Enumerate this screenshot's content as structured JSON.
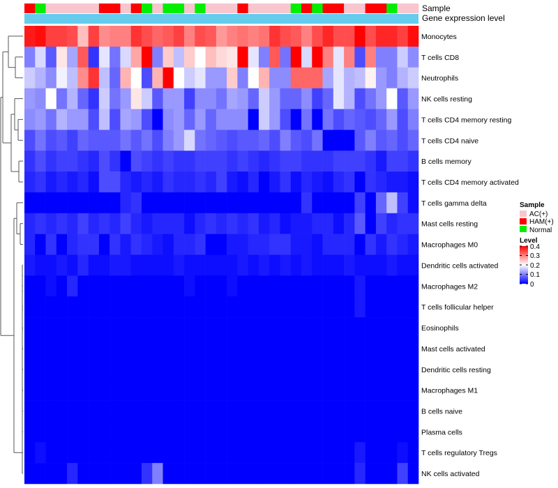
{
  "chart_data": {
    "type": "heatmap",
    "title": "",
    "annotation_tracks": [
      "Sample",
      "Gene expression level"
    ],
    "sample_annotation": [
      "HAM(+)",
      "Normal",
      "AC(+)",
      "AC(+)",
      "AC(+)",
      "AC(+)",
      "AC(+)",
      "HAM(+)",
      "HAM(+)",
      "AC(+)",
      "HAM(+)",
      "Normal",
      "AC(+)",
      "Normal",
      "Normal",
      "AC(+)",
      "Normal",
      "AC(+)",
      "AC(+)",
      "AC(+)",
      "HAM(+)",
      "AC(+)",
      "AC(+)",
      "AC(+)",
      "AC(+)",
      "Normal",
      "HAM(+)",
      "Normal",
      "HAM(+)",
      "HAM(+)",
      "AC(+)",
      "AC(+)",
      "HAM(+)",
      "HAM(+)",
      "Normal",
      "AC(+)",
      "AC(+)"
    ],
    "rows": [
      "Monocytes",
      "T cells CD8",
      "Neutrophils",
      "NK cells resting",
      "T cells CD4 memory resting",
      "T cells CD4 naive",
      "B cells memory",
      "T cells CD4 memory activated",
      "T cells gamma delta",
      "Mast cells resting",
      "Macrophages M0",
      "Dendritic cells activated",
      "Macrophages M2",
      "T cells follicular helper",
      "Eosinophils",
      "Mast cells activated",
      "Dendritic cells resting",
      "Macrophages M1",
      "B cells naive",
      "Plasma cells",
      "T cells regulatory  Tregs",
      "NK cells activated"
    ],
    "values": [
      [
        0.38,
        0.39,
        0.35,
        0.35,
        0.34,
        0.25,
        0.35,
        0.29,
        0.3,
        0.3,
        0.36,
        0.34,
        0.32,
        0.33,
        0.35,
        0.3,
        0.34,
        0.33,
        0.28,
        0.3,
        0.31,
        0.3,
        0.31,
        0.36,
        0.34,
        0.33,
        0.3,
        0.34,
        0.37,
        0.34,
        0.34,
        0.4,
        0.34,
        0.37,
        0.37,
        0.35,
        0.39
      ],
      [
        0.1,
        0.17,
        0.07,
        0.22,
        0.13,
        0.33,
        0.04,
        0.18,
        0.09,
        0.17,
        0.27,
        0.4,
        0.1,
        0.24,
        0.15,
        0.24,
        0.2,
        0.25,
        0.23,
        0.22,
        0.4,
        0.18,
        0.1,
        0.33,
        0.09,
        0.4,
        0.17,
        0.4,
        0.3,
        0.18,
        0.3,
        0.06,
        0.3,
        0.1,
        0.1,
        0.16,
        0.11
      ],
      [
        0.16,
        0.14,
        0.11,
        0.19,
        0.15,
        0.29,
        0.36,
        0.15,
        0.08,
        0.26,
        0.2,
        0.06,
        0.26,
        0.4,
        0.2,
        0.16,
        0.18,
        0.12,
        0.12,
        0.24,
        0.1,
        0.2,
        0.26,
        0.11,
        0.11,
        0.32,
        0.32,
        0.32,
        0.13,
        0.18,
        0.14,
        0.15,
        0.21,
        0.12,
        0.1,
        0.14,
        0.16
      ],
      [
        0.12,
        0.11,
        0.2,
        0.09,
        0.14,
        0.08,
        0.04,
        0.16,
        0.09,
        0.12,
        0.22,
        0.16,
        0.07,
        0.12,
        0.12,
        0.05,
        0.11,
        0.11,
        0.09,
        0.13,
        0.12,
        0.08,
        0.16,
        0.12,
        0.08,
        0.08,
        0.11,
        0.05,
        0.08,
        0.18,
        0.14,
        0.06,
        0.09,
        0.12,
        0.2,
        0.07,
        0.12
      ],
      [
        0.11,
        0.12,
        0.09,
        0.14,
        0.12,
        0.12,
        0.06,
        0.15,
        0.06,
        0.13,
        0.12,
        0.06,
        0.0,
        0.11,
        0.12,
        0.08,
        0.12,
        0.08,
        0.11,
        0.11,
        0.11,
        0.0,
        0.16,
        0.12,
        0.06,
        0.0,
        0.09,
        0.0,
        0.09,
        0.06,
        0.08,
        0.07,
        0.06,
        0.08,
        0.12,
        0.06,
        0.1
      ],
      [
        0.06,
        0.09,
        0.06,
        0.07,
        0.05,
        0.08,
        0.07,
        0.07,
        0.07,
        0.09,
        0.07,
        0.09,
        0.06,
        0.1,
        0.12,
        0.17,
        0.09,
        0.08,
        0.07,
        0.06,
        0.07,
        0.07,
        0.08,
        0.06,
        0.1,
        0.07,
        0.06,
        0.09,
        0.0,
        0.0,
        0.0,
        0.07,
        0.1,
        0.07,
        0.08,
        0.06,
        0.08
      ],
      [
        0.04,
        0.06,
        0.04,
        0.05,
        0.05,
        0.04,
        0.03,
        0.06,
        0.04,
        0.0,
        0.06,
        0.05,
        0.04,
        0.05,
        0.04,
        0.04,
        0.05,
        0.05,
        0.05,
        0.04,
        0.05,
        0.04,
        0.03,
        0.04,
        0.05,
        0.05,
        0.04,
        0.04,
        0.04,
        0.05,
        0.05,
        0.05,
        0.04,
        0.02,
        0.05,
        0.05,
        0.04
      ],
      [
        0.03,
        0.04,
        0.02,
        0.03,
        0.02,
        0.03,
        0.01,
        0.06,
        0.06,
        0.03,
        0.02,
        0.03,
        0.02,
        0.04,
        0.03,
        0.03,
        0.04,
        0.03,
        0.05,
        0.02,
        0.01,
        0.03,
        0.0,
        0.02,
        0.04,
        0.01,
        0.03,
        0.02,
        0.01,
        0.03,
        0.04,
        0.0,
        0.04,
        0.03,
        0.02,
        0.02,
        0.01
      ],
      [
        0.0,
        0.0,
        0.0,
        0.0,
        0.0,
        0.0,
        0.0,
        0.0,
        0.0,
        0.03,
        0.04,
        0.0,
        0.0,
        0.0,
        0.0,
        0.0,
        0.0,
        0.0,
        0.0,
        0.0,
        0.0,
        0.0,
        0.0,
        0.0,
        0.0,
        0.0,
        0.04,
        0.0,
        0.0,
        0.0,
        0.0,
        0.05,
        0.0,
        0.08,
        0.15,
        0.05,
        0.01
      ],
      [
        0.03,
        0.04,
        0.03,
        0.04,
        0.03,
        0.05,
        0.03,
        0.04,
        0.03,
        0.05,
        0.03,
        0.02,
        0.03,
        0.03,
        0.03,
        0.01,
        0.03,
        0.04,
        0.03,
        0.04,
        0.03,
        0.04,
        0.02,
        0.03,
        0.01,
        0.02,
        0.02,
        0.03,
        0.03,
        0.01,
        0.03,
        0.07,
        0.0,
        0.05,
        0.03,
        0.04,
        0.04
      ],
      [
        0.03,
        0.0,
        0.04,
        0.0,
        0.03,
        0.04,
        0.04,
        0.0,
        0.04,
        0.02,
        0.04,
        0.03,
        0.02,
        0.01,
        0.03,
        0.03,
        0.04,
        0.0,
        0.0,
        0.02,
        0.02,
        0.03,
        0.03,
        0.04,
        0.04,
        0.02,
        0.02,
        0.01,
        0.03,
        0.03,
        0.03,
        0.0,
        0.04,
        0.02,
        0.04,
        0.03,
        0.02
      ],
      [
        0.02,
        0.01,
        0.01,
        0.02,
        0.01,
        0.03,
        0.01,
        0.01,
        0.02,
        0.02,
        0.01,
        0.01,
        0.01,
        0.01,
        0.02,
        0.01,
        0.01,
        0.01,
        0.01,
        0.01,
        0.02,
        0.01,
        0.02,
        0.01,
        0.02,
        0.01,
        0.02,
        0.01,
        0.01,
        0.01,
        0.02,
        0.01,
        0.01,
        0.01,
        0.02,
        0.01,
        0.01
      ],
      [
        0.0,
        0.0,
        0.01,
        0.0,
        0.03,
        0.0,
        0.0,
        0.0,
        0.0,
        0.0,
        0.0,
        0.0,
        0.0,
        0.0,
        0.0,
        0.01,
        0.0,
        0.0,
        0.0,
        0.01,
        0.0,
        0.0,
        0.0,
        0.0,
        0.0,
        0.0,
        0.0,
        0.0,
        0.0,
        0.0,
        0.0,
        0.02,
        0.0,
        0.0,
        0.0,
        0.0,
        0.0
      ],
      [
        0.0,
        0.0,
        0.0,
        0.0,
        0.0,
        0.0,
        0.0,
        0.0,
        0.0,
        0.0,
        0.0,
        0.0,
        0.0,
        0.0,
        0.0,
        0.0,
        0.0,
        0.0,
        0.0,
        0.0,
        0.0,
        0.0,
        0.0,
        0.0,
        0.0,
        0.0,
        0.0,
        0.0,
        0.0,
        0.0,
        0.0,
        0.02,
        0.0,
        0.0,
        0.0,
        0.0,
        0.0
      ],
      [
        0.0,
        0.0,
        0.0,
        0.0,
        0.0,
        0.0,
        0.0,
        0.0,
        0.0,
        0.0,
        0.0,
        0.0,
        0.0,
        0.0,
        0.0,
        0.0,
        0.0,
        0.0,
        0.0,
        0.0,
        0.0,
        0.0,
        0.0,
        0.0,
        0.0,
        0.0,
        0.0,
        0.0,
        0.0,
        0.0,
        0.0,
        0.0,
        0.0,
        0.0,
        0.0,
        0.0,
        0.0
      ],
      [
        0.0,
        0.0,
        0.0,
        0.0,
        0.0,
        0.0,
        0.0,
        0.0,
        0.0,
        0.0,
        0.0,
        0.0,
        0.0,
        0.0,
        0.0,
        0.0,
        0.0,
        0.0,
        0.0,
        0.0,
        0.0,
        0.0,
        0.0,
        0.0,
        0.0,
        0.0,
        0.0,
        0.0,
        0.0,
        0.0,
        0.0,
        0.0,
        0.0,
        0.0,
        0.0,
        0.0,
        0.0
      ],
      [
        0.0,
        0.0,
        0.0,
        0.0,
        0.0,
        0.0,
        0.0,
        0.0,
        0.0,
        0.0,
        0.0,
        0.0,
        0.0,
        0.0,
        0.0,
        0.0,
        0.0,
        0.0,
        0.0,
        0.0,
        0.0,
        0.0,
        0.0,
        0.0,
        0.0,
        0.0,
        0.0,
        0.0,
        0.0,
        0.0,
        0.0,
        0.0,
        0.0,
        0.0,
        0.0,
        0.0,
        0.0
      ],
      [
        0.0,
        0.0,
        0.0,
        0.0,
        0.0,
        0.0,
        0.0,
        0.0,
        0.0,
        0.0,
        0.0,
        0.0,
        0.0,
        0.0,
        0.0,
        0.0,
        0.0,
        0.0,
        0.0,
        0.0,
        0.0,
        0.0,
        0.0,
        0.0,
        0.0,
        0.0,
        0.0,
        0.0,
        0.0,
        0.0,
        0.0,
        0.0,
        0.0,
        0.0,
        0.0,
        0.0,
        0.0
      ],
      [
        0.0,
        0.0,
        0.0,
        0.0,
        0.0,
        0.0,
        0.0,
        0.0,
        0.0,
        0.0,
        0.0,
        0.0,
        0.0,
        0.0,
        0.0,
        0.0,
        0.0,
        0.0,
        0.0,
        0.0,
        0.0,
        0.0,
        0.0,
        0.0,
        0.0,
        0.0,
        0.0,
        0.0,
        0.0,
        0.0,
        0.0,
        0.0,
        0.0,
        0.0,
        0.0,
        0.0,
        0.0
      ],
      [
        0.0,
        0.0,
        0.0,
        0.0,
        0.0,
        0.0,
        0.0,
        0.0,
        0.0,
        0.0,
        0.0,
        0.0,
        0.0,
        0.0,
        0.0,
        0.0,
        0.0,
        0.0,
        0.0,
        0.0,
        0.0,
        0.0,
        0.0,
        0.0,
        0.0,
        0.0,
        0.0,
        0.0,
        0.0,
        0.0,
        0.0,
        0.0,
        0.0,
        0.0,
        0.0,
        0.0,
        0.0
      ],
      [
        0.0,
        0.01,
        0.0,
        0.0,
        0.0,
        0.0,
        0.0,
        0.0,
        0.0,
        0.0,
        0.0,
        0.0,
        0.0,
        0.0,
        0.0,
        0.0,
        0.0,
        0.0,
        0.0,
        0.0,
        0.0,
        0.0,
        0.0,
        0.0,
        0.0,
        0.0,
        0.0,
        0.0,
        0.0,
        0.0,
        0.0,
        0.02,
        0.0,
        0.0,
        0.0,
        0.01,
        0.0
      ],
      [
        0.0,
        0.0,
        0.0,
        0.0,
        0.03,
        0.0,
        0.0,
        0.0,
        0.0,
        0.0,
        0.0,
        0.04,
        0.1,
        0.0,
        0.0,
        0.0,
        0.0,
        0.0,
        0.0,
        0.0,
        0.0,
        0.0,
        0.0,
        0.0,
        0.0,
        0.0,
        0.0,
        0.0,
        0.0,
        0.0,
        0.0,
        0.03,
        0.0,
        0.0,
        0.0,
        0.05,
        0.0
      ]
    ],
    "color_scale": {
      "low": "#0000ff",
      "mid": "#ffffff",
      "high": "#ff0000",
      "min": 0,
      "mid_value": 0.2,
      "max": 0.4
    },
    "legends": [
      {
        "title": "Sample",
        "entries": [
          {
            "label": "AC(+)",
            "color": "#f7c6cf"
          },
          {
            "label": "HAM(+)",
            "color": "#ff0000"
          },
          {
            "label": "Normal",
            "color": "#00ee00"
          }
        ]
      },
      {
        "title": "Level",
        "ticks": [
          "0.4",
          "0.3",
          "0.2",
          "0.1",
          "0"
        ]
      }
    ],
    "expression_bar_color": "#66ccee",
    "row_dendrogram": true
  }
}
